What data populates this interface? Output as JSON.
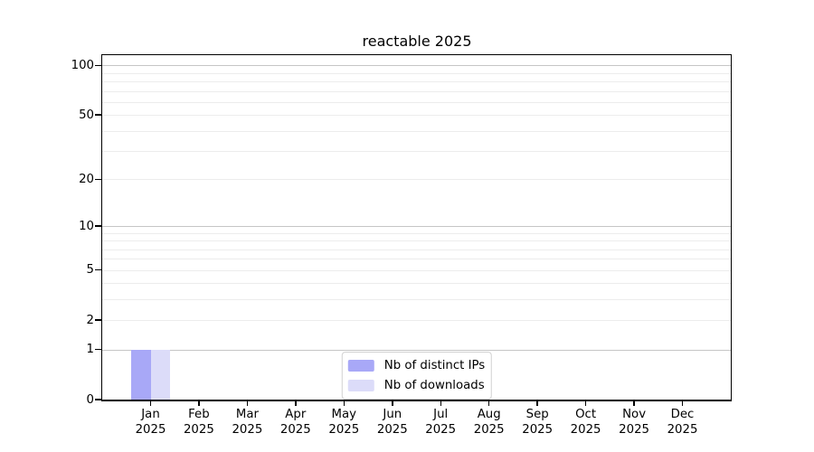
{
  "chart_data": {
    "type": "bar",
    "title": "reactable 2025",
    "categories": [
      "Jan",
      "Feb",
      "Mar",
      "Apr",
      "May",
      "Jun",
      "Jul",
      "Aug",
      "Sep",
      "Oct",
      "Nov",
      "Dec"
    ],
    "year_label": "2025",
    "series": [
      {
        "name": "Nb of distinct IPs",
        "color": "#a8a8f7",
        "values": [
          1,
          0,
          0,
          0,
          0,
          0,
          0,
          0,
          0,
          0,
          0,
          0
        ]
      },
      {
        "name": "Nb of downloads",
        "color": "#dcdcf9",
        "values": [
          1,
          0,
          0,
          0,
          0,
          0,
          0,
          0,
          0,
          0,
          0,
          0
        ]
      }
    ],
    "yticks": [
      0,
      1,
      2,
      5,
      10,
      20,
      50,
      100
    ],
    "grid_major": [
      1,
      10,
      100
    ],
    "grid_minor": [
      2,
      3,
      4,
      5,
      6,
      7,
      8,
      9,
      20,
      30,
      40,
      50,
      60,
      70,
      80,
      90
    ],
    "scale": "log1p",
    "ylim": [
      0,
      115.5
    ],
    "xlabel": "",
    "ylabel": "",
    "grid": "on",
    "legend_position": "bottom-center"
  }
}
